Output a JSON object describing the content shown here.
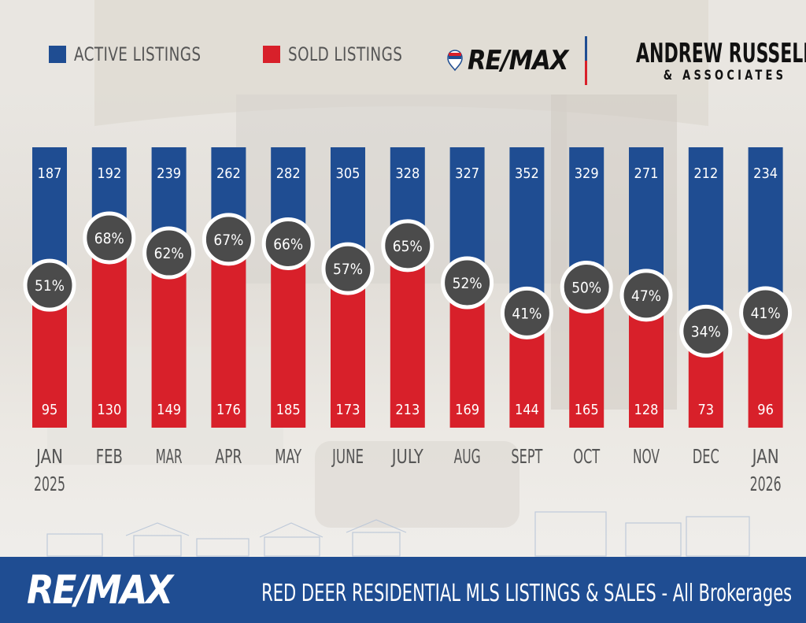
{
  "legend": {
    "active_label": "ACTIVE LISTINGS",
    "sold_label": "SOLD LISTINGS"
  },
  "logos": {
    "remax_top": "RE/MAX",
    "brand_name": "ANDREW RUSSELL",
    "brand_sub": "& ASSOCIATES",
    "remax_footer": "RE/MAX"
  },
  "footer": {
    "title": "RED DEER RESIDENTIAL MLS LISTINGS & SALES - All Brokerages"
  },
  "colors": {
    "active": "#1f4d92",
    "sold": "#d8202a",
    "badge": "#4b4b4b",
    "footer": "#1f4d92"
  },
  "chart_data": {
    "type": "bar",
    "stacked_as_split_columns": true,
    "categories": [
      [
        "JAN",
        "2025"
      ],
      [
        "FEB"
      ],
      [
        "MAR"
      ],
      [
        "APR"
      ],
      [
        "MAY"
      ],
      [
        "JUNE"
      ],
      [
        "JULY"
      ],
      [
        "AUG"
      ],
      [
        "SEPT"
      ],
      [
        "OCT"
      ],
      [
        "NOV"
      ],
      [
        "DEC"
      ],
      [
        "JAN",
        "2026"
      ]
    ],
    "series": [
      {
        "name": "ACTIVE LISTINGS",
        "values": [
          187,
          192,
          239,
          262,
          282,
          305,
          328,
          327,
          352,
          329,
          271,
          212,
          234
        ]
      },
      {
        "name": "SOLD LISTINGS",
        "values": [
          95,
          130,
          149,
          176,
          185,
          173,
          213,
          169,
          144,
          165,
          128,
          73,
          96
        ]
      }
    ],
    "percent_labels": [
      "51%",
      "68%",
      "62%",
      "67%",
      "66%",
      "57%",
      "65%",
      "52%",
      "41%",
      "50%",
      "47%",
      "34%",
      "41%"
    ]
  }
}
